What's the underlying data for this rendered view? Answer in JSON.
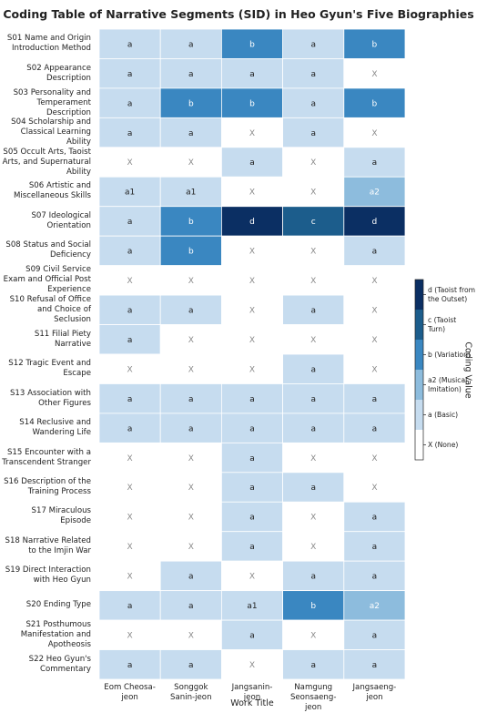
{
  "chart_data": {
    "type": "heatmap",
    "title": "Coding Table of Narrative Segments (SID) in Heo Gyun's Five Biographies",
    "x_label": "Work Title",
    "colorbar_title": "Coding Value",
    "columns": [
      "Eom Cheosa-jeon",
      "Songgok Sanin-jeon",
      "Jangsanin-jeon",
      "Namgung Seonsaeng-jeon",
      "Jangsaeng-jeon"
    ],
    "rows": [
      "S01 Name and Origin Introduction Method",
      "S02 Appearance Description",
      "S03 Personality and Temperament Description",
      "S04 Scholarship and Classical Learning Ability",
      "S05 Occult Arts, Taoist Arts, and Supernatural Ability",
      "S06 Artistic and Miscellaneous Skills",
      "S07 Ideological Orientation",
      "S08 Status and Social Deficiency",
      "S09 Civil Service Exam and Official Post Experience",
      "S10 Refusal of Office and Choice of Seclusion",
      "S11 Filial Piety Narrative",
      "S12 Tragic Event and Escape",
      "S13 Association with Other Figures",
      "S14 Reclusive and Wandering Life",
      "S15 Encounter with a Transcendent Stranger",
      "S16 Description of the Training Process",
      "S17 Miraculous Episode",
      "S18 Narrative Related to the Imjin War",
      "S19 Direct Interaction with Heo Gyun",
      "S20 Ending Type",
      "S21 Posthumous Manifestation and Apotheosis",
      "S22 Heo Gyun's Commentary"
    ],
    "cells": [
      [
        "a",
        "a",
        "b",
        "a",
        "b"
      ],
      [
        "a",
        "a",
        "a",
        "a",
        "X"
      ],
      [
        "a",
        "b",
        "b",
        "a",
        "b"
      ],
      [
        "a",
        "a",
        "X",
        "a",
        "X"
      ],
      [
        "X",
        "X",
        "a",
        "X",
        "a"
      ],
      [
        "a1",
        "a1",
        "X",
        "X",
        "a2"
      ],
      [
        "a",
        "b",
        "d",
        "c",
        "d"
      ],
      [
        "a",
        "b",
        "X",
        "X",
        "a"
      ],
      [
        "X",
        "X",
        "X",
        "X",
        "X"
      ],
      [
        "a",
        "a",
        "X",
        "a",
        "X"
      ],
      [
        "a",
        "X",
        "X",
        "X",
        "X"
      ],
      [
        "X",
        "X",
        "X",
        "a",
        "X"
      ],
      [
        "a",
        "a",
        "a",
        "a",
        "a"
      ],
      [
        "a",
        "a",
        "a",
        "a",
        "a"
      ],
      [
        "X",
        "X",
        "a",
        "X",
        "X"
      ],
      [
        "X",
        "X",
        "a",
        "a",
        "X"
      ],
      [
        "X",
        "X",
        "a",
        "X",
        "a"
      ],
      [
        "X",
        "X",
        "a",
        "X",
        "a"
      ],
      [
        "X",
        "a",
        "X",
        "a",
        "a"
      ],
      [
        "a",
        "a",
        "a1",
        "b",
        "a2"
      ],
      [
        "X",
        "X",
        "a",
        "X",
        "a"
      ],
      [
        "a",
        "a",
        "X",
        "a",
        "a"
      ]
    ],
    "code_colors": {
      "X": {
        "fill": "#ffffff",
        "text": "#8a8a8a"
      },
      "a": {
        "fill": "#c6dcef",
        "text": "#222222"
      },
      "a1": {
        "fill": "#c6dcef",
        "text": "#222222"
      },
      "a2": {
        "fill": "#8dbcdd",
        "text": "#ffffff"
      },
      "b": {
        "fill": "#3a87c1",
        "text": "#ffffff"
      },
      "c": {
        "fill": "#1c5d8c",
        "text": "#ffffff"
      },
      "d": {
        "fill": "#0b2f63",
        "text": "#ffffff"
      }
    },
    "colorbar": [
      {
        "label": "d (Taoist from the Outset)",
        "color": "#0b2f63"
      },
      {
        "label": "c (Taoist Turn)",
        "color": "#1c5d8c"
      },
      {
        "label": "b (Variation)",
        "color": "#3a87c1"
      },
      {
        "label": "a2 (Musical Imitation)",
        "color": "#8dbcdd"
      },
      {
        "label": "a (Basic)",
        "color": "#c6dcef"
      },
      {
        "label": "X (None)",
        "color": "#ffffff"
      }
    ]
  }
}
